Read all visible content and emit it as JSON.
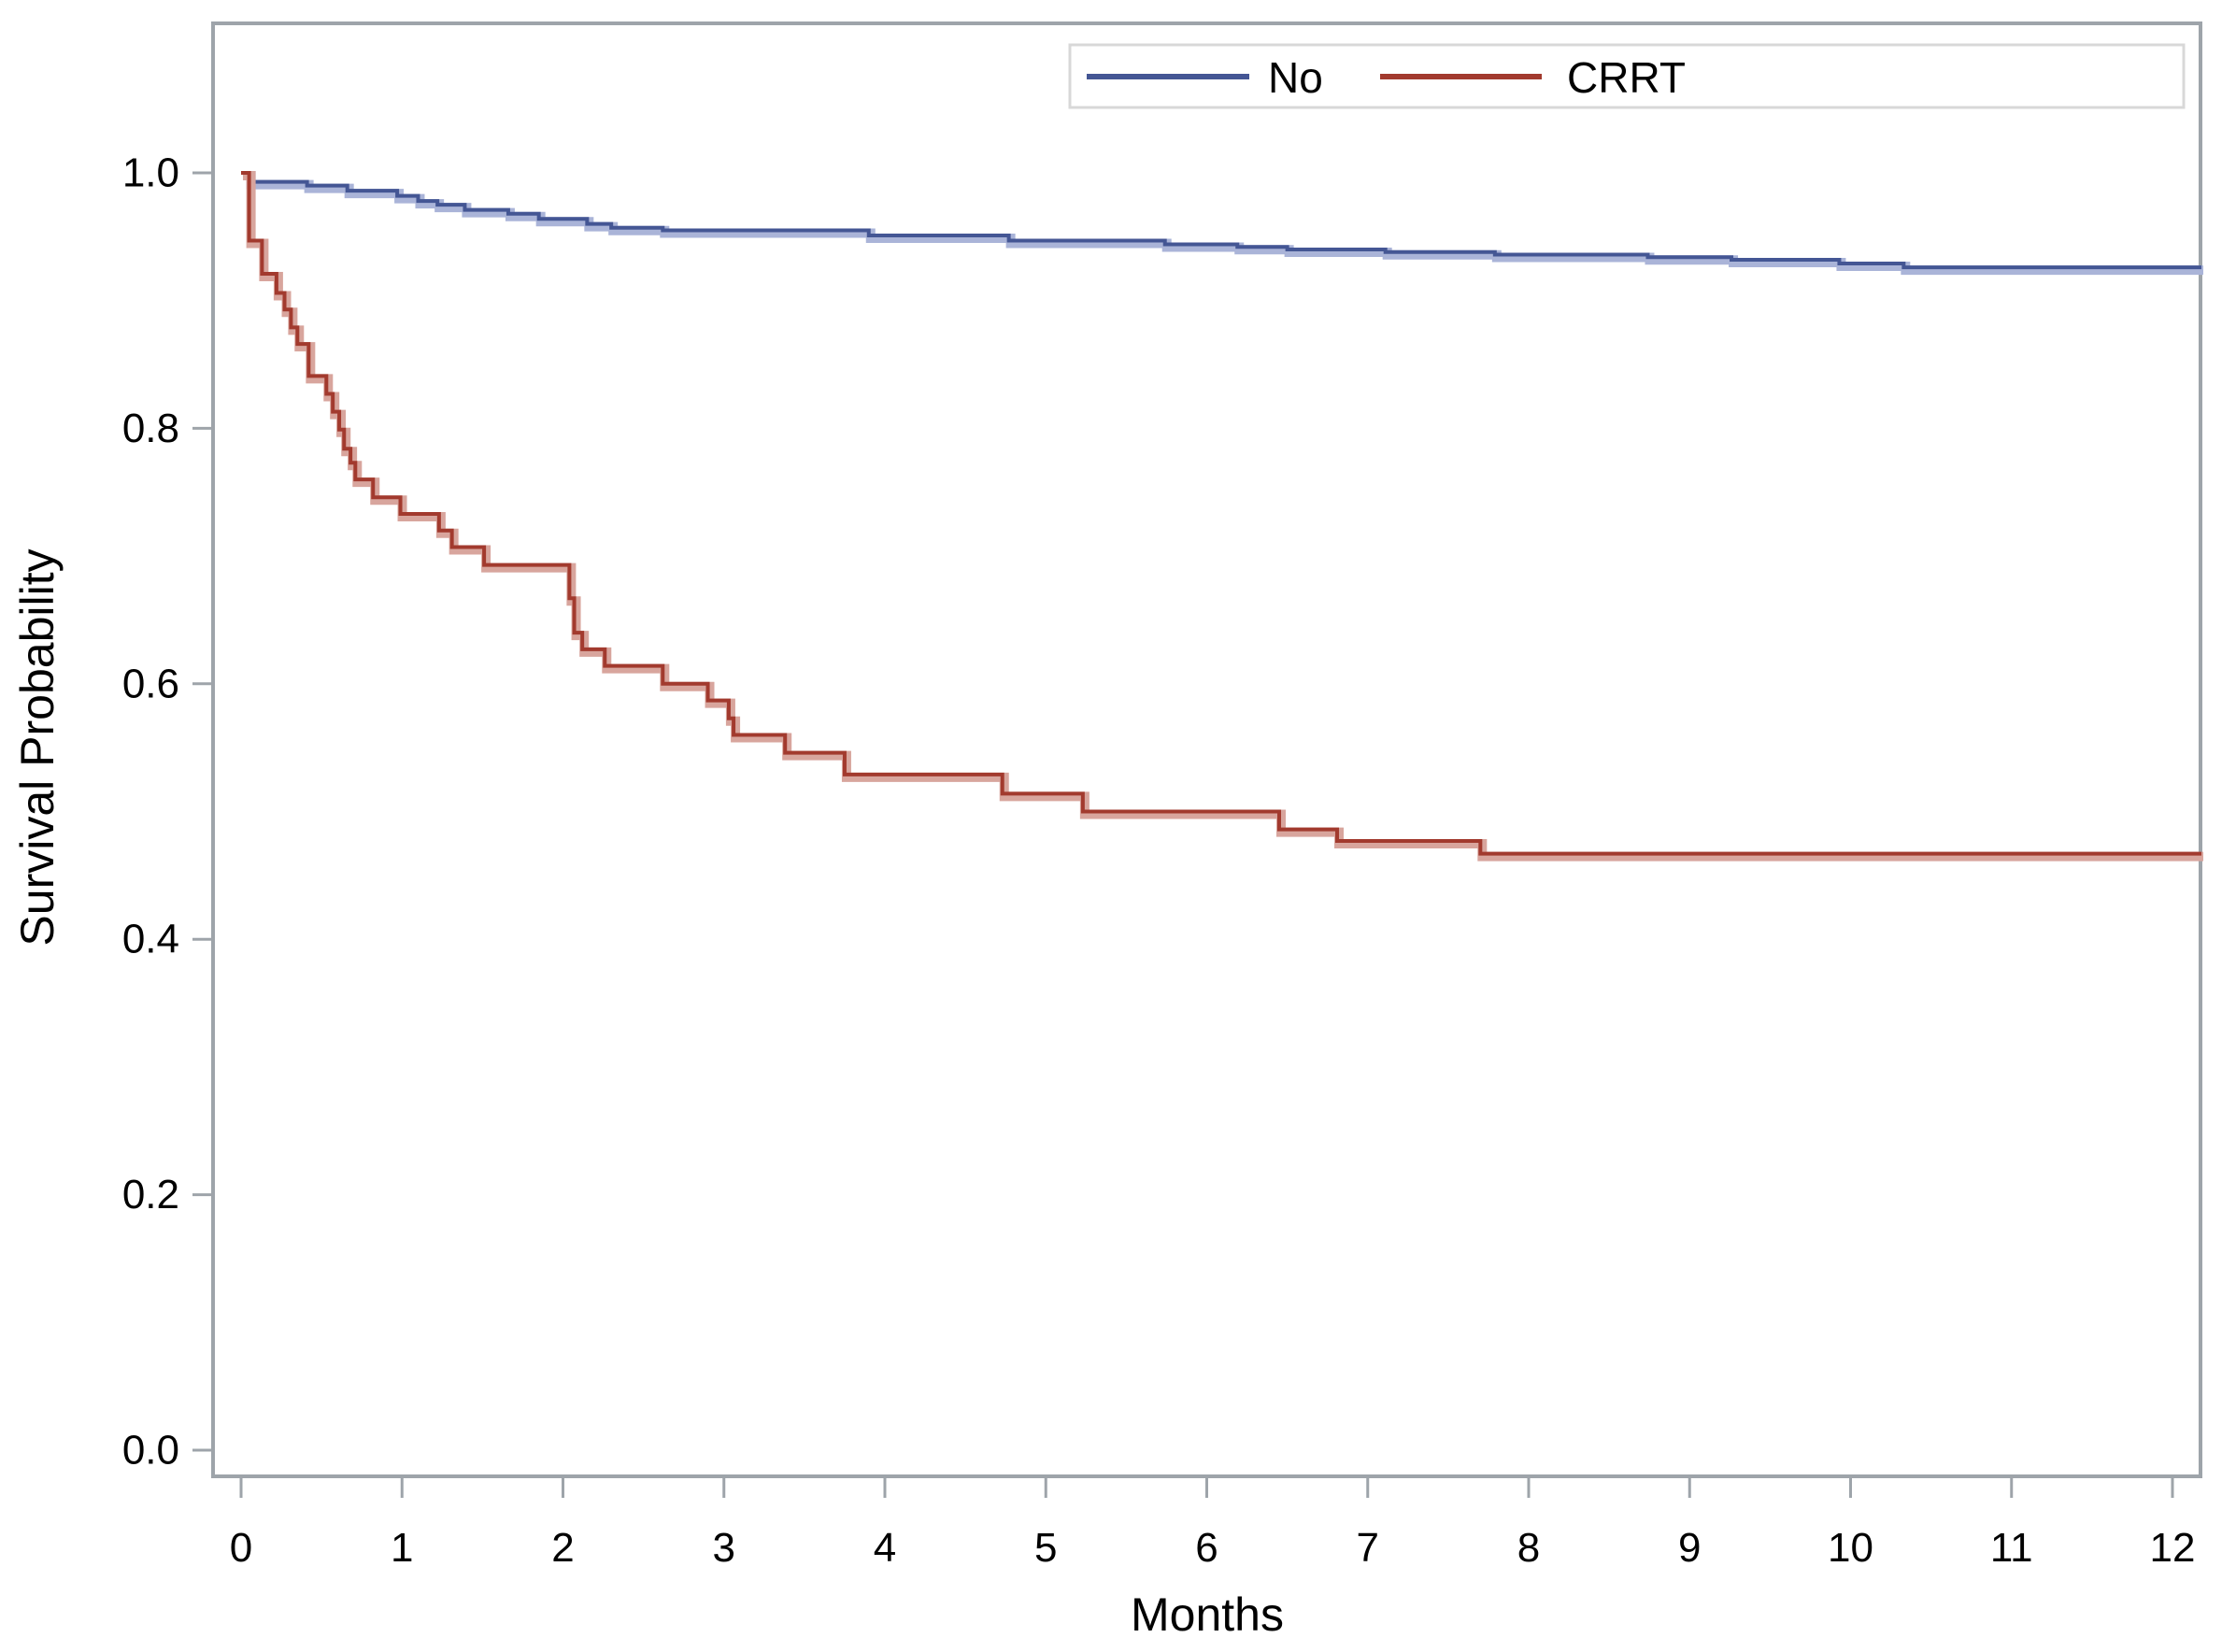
{
  "figure": {
    "xlabel": "Months",
    "ylabel": "Survival Probability",
    "background": "#ffffff",
    "frame_color": "#9EA4AA",
    "legend": {
      "border_color": "#D8D8D8",
      "items": [
        {
          "label": "No",
          "color": "#445694"
        },
        {
          "label": "CRRT",
          "color": "#A23A2E"
        }
      ]
    }
  },
  "chart_data": {
    "type": "line",
    "subtype": "kaplan-meier-step",
    "title": "",
    "xlabel": "Months",
    "ylabel": "Survival Probability",
    "xlim": [
      -0.18,
      12.18
    ],
    "ylim": [
      -0.02,
      1.12
    ],
    "grid": false,
    "legend_position": "top-right-inside",
    "x_ticks": [
      0,
      1,
      2,
      3,
      4,
      5,
      6,
      7,
      8,
      9,
      10,
      11,
      12
    ],
    "x_tick_labels": [
      "0",
      "1",
      "2",
      "3",
      "4",
      "5",
      "6",
      "7",
      "8",
      "9",
      "10",
      "11",
      "12"
    ],
    "y_ticks": [
      0.0,
      0.2,
      0.4,
      0.6,
      0.8,
      1.0
    ],
    "y_tick_labels": [
      "0.0",
      "0.2",
      "0.4",
      "0.6",
      "0.8",
      "1.0"
    ],
    "series": [
      {
        "name": "No",
        "color": "#445694",
        "band_color": "#AAB4D8",
        "points": [
          [
            0.0,
            1.0
          ],
          [
            0.05,
            0.993
          ],
          [
            0.41,
            0.99
          ],
          [
            0.66,
            0.986
          ],
          [
            0.97,
            0.982
          ],
          [
            1.1,
            0.978
          ],
          [
            1.22,
            0.975
          ],
          [
            1.39,
            0.971
          ],
          [
            1.66,
            0.968
          ],
          [
            1.85,
            0.964
          ],
          [
            2.15,
            0.96
          ],
          [
            2.3,
            0.957
          ],
          [
            2.62,
            0.955
          ],
          [
            3.9,
            0.951
          ],
          [
            4.77,
            0.947
          ],
          [
            5.74,
            0.944
          ],
          [
            6.19,
            0.942
          ],
          [
            6.5,
            0.94
          ],
          [
            7.11,
            0.938
          ],
          [
            7.79,
            0.936
          ],
          [
            8.74,
            0.934
          ],
          [
            9.26,
            0.932
          ],
          [
            9.93,
            0.929
          ],
          [
            10.33,
            0.926
          ],
          [
            12.18,
            0.926
          ]
        ]
      },
      {
        "name": "CRRT",
        "color": "#A23A2E",
        "band_color": "#D8A59D",
        "points": [
          [
            0.0,
            1.0
          ],
          [
            0.05,
            0.947
          ],
          [
            0.13,
            0.921
          ],
          [
            0.22,
            0.906
          ],
          [
            0.27,
            0.893
          ],
          [
            0.31,
            0.879
          ],
          [
            0.35,
            0.866
          ],
          [
            0.42,
            0.841
          ],
          [
            0.53,
            0.827
          ],
          [
            0.57,
            0.813
          ],
          [
            0.61,
            0.799
          ],
          [
            0.64,
            0.784
          ],
          [
            0.68,
            0.773
          ],
          [
            0.71,
            0.76
          ],
          [
            0.82,
            0.746
          ],
          [
            0.99,
            0.733
          ],
          [
            1.23,
            0.72
          ],
          [
            1.31,
            0.707
          ],
          [
            1.51,
            0.693
          ],
          [
            2.04,
            0.667
          ],
          [
            2.07,
            0.64
          ],
          [
            2.12,
            0.627
          ],
          [
            2.26,
            0.614
          ],
          [
            2.62,
            0.6
          ],
          [
            2.9,
            0.587
          ],
          [
            3.03,
            0.573
          ],
          [
            3.06,
            0.56
          ],
          [
            3.38,
            0.546
          ],
          [
            3.75,
            0.529
          ],
          [
            4.73,
            0.514
          ],
          [
            5.23,
            0.5
          ],
          [
            6.45,
            0.486
          ],
          [
            6.81,
            0.477
          ],
          [
            7.7,
            0.467
          ],
          [
            12.18,
            0.467
          ]
        ]
      }
    ]
  }
}
